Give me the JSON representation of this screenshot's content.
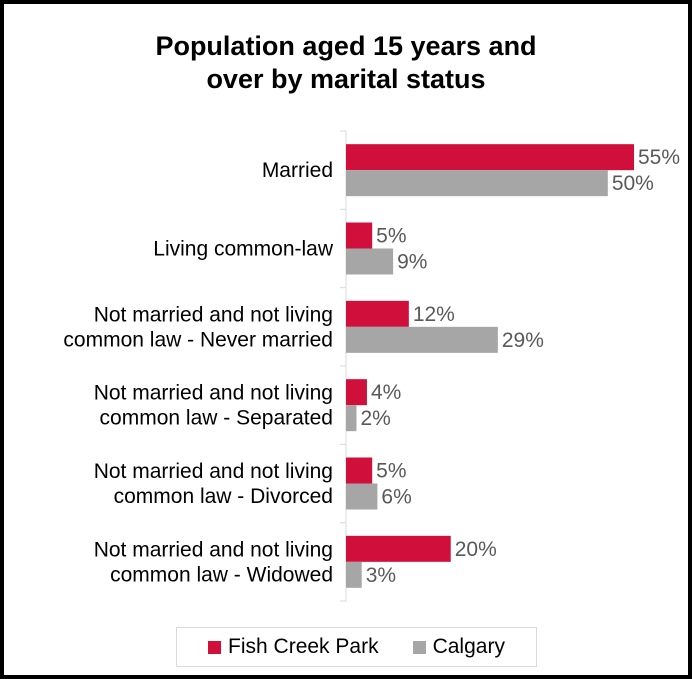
{
  "chart_data": {
    "type": "bar",
    "orientation": "horizontal",
    "title_lines": [
      "Population aged 15 years and",
      "over by marital status"
    ],
    "categories": [
      [
        "Married"
      ],
      [
        "Living common-law"
      ],
      [
        "Not married and not living",
        "common law - Never married"
      ],
      [
        "Not married and not living",
        "common law - Separated"
      ],
      [
        "Not married and not living",
        "common law - Divorced"
      ],
      [
        "Not married and not living",
        "common law - Widowed"
      ]
    ],
    "series": [
      {
        "name": "Fish Creek Park",
        "color": "#d0103a",
        "values": [
          55,
          5,
          12,
          4,
          5,
          20
        ],
        "labels": [
          "55%",
          "5%",
          "12%",
          "4%",
          "5%",
          "20%"
        ]
      },
      {
        "name": "Calgary",
        "color": "#a6a6a6",
        "values": [
          50,
          9,
          29,
          2,
          6,
          3
        ],
        "labels": [
          "50%",
          "9%",
          "29%",
          "2%",
          "6%",
          "3%"
        ]
      }
    ],
    "xlim": [
      0,
      55
    ],
    "grid": false,
    "legend_position": "bottom"
  }
}
